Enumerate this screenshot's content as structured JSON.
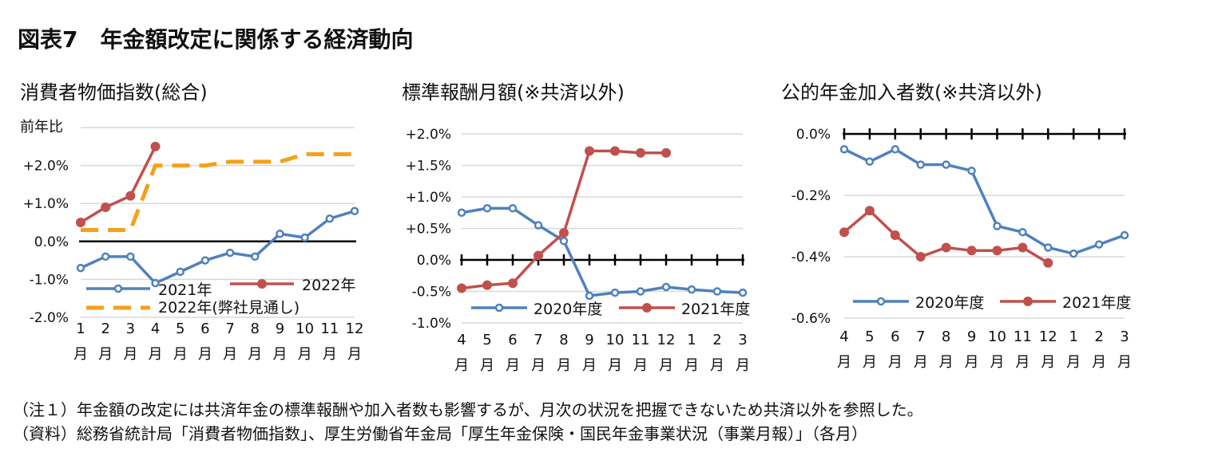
{
  "figure_title": "図表7　年金額改定に関係する経済動向",
  "notes": [
    "（注１）年金額の改定には共済年金の標準報酬や加入者数も影響するが、月次の状況を把握できないため共済以外を参照した。",
    "（資料）総務省統計局「消費者物価指数」、厚生労働省年金局「厚生年金保険・国民年金事業状況（事業月報）」（各月）"
  ],
  "chart_data": [
    {
      "type": "line",
      "title": "消費者物価指数(総合)",
      "ylabel": "前年比",
      "categories": [
        "1月",
        "2月",
        "3月",
        "4月",
        "5月",
        "6月",
        "7月",
        "8月",
        "9月",
        "10月",
        "11月",
        "12月"
      ],
      "ylim": [
        -2.0,
        3.0
      ],
      "yticks": [
        2.0,
        1.0,
        0.0,
        -1.0,
        -2.0
      ],
      "ytick_labels": [
        "+2.0%",
        "+1.0%",
        "0.0%",
        "-1.0%",
        "-2.0%"
      ],
      "grid": true,
      "series": [
        {
          "name": "2021年",
          "color": "#4F81BD",
          "style": "solid",
          "marker": "circle-open",
          "values": [
            -0.7,
            -0.4,
            -0.4,
            -1.1,
            -0.8,
            -0.5,
            -0.3,
            -0.4,
            0.2,
            0.1,
            0.6,
            0.8
          ]
        },
        {
          "name": "2022年",
          "color": "#C0504D",
          "style": "solid",
          "marker": "circle",
          "values": [
            0.5,
            0.9,
            1.2,
            2.5,
            null,
            null,
            null,
            null,
            null,
            null,
            null,
            null
          ]
        },
        {
          "name": "2022年(弊社見通し)",
          "color": "#F5A01A",
          "style": "dashed",
          "marker": "none",
          "values": [
            0.3,
            0.3,
            0.3,
            2.0,
            2.0,
            2.0,
            2.1,
            2.1,
            2.1,
            2.3,
            2.3,
            2.3
          ]
        }
      ]
    },
    {
      "type": "line",
      "title": "標準報酬月額(※共済以外)",
      "categories": [
        "4月",
        "5月",
        "6月",
        "7月",
        "8月",
        "9月",
        "10月",
        "11月",
        "12月",
        "1月",
        "2月",
        "3月"
      ],
      "ylim": [
        -1.0,
        2.0
      ],
      "yticks": [
        2.0,
        1.5,
        1.0,
        0.5,
        0.0,
        -0.5,
        -1.0
      ],
      "ytick_labels": [
        "+2.0%",
        "+1.5%",
        "+1.0%",
        "+0.5%",
        "0.0%",
        "-0.5%",
        "-1.0%"
      ],
      "grid": true,
      "series": [
        {
          "name": "2020年度",
          "color": "#4F81BD",
          "style": "solid",
          "marker": "circle-open",
          "values": [
            0.75,
            0.82,
            0.82,
            0.55,
            0.3,
            -0.57,
            -0.52,
            -0.5,
            -0.43,
            -0.47,
            -0.5,
            -0.52
          ]
        },
        {
          "name": "2021年度",
          "color": "#C0504D",
          "style": "solid",
          "marker": "circle",
          "values": [
            -0.45,
            -0.4,
            -0.37,
            0.07,
            0.43,
            1.73,
            1.73,
            1.7,
            1.7,
            null,
            null,
            null
          ]
        }
      ]
    },
    {
      "type": "line",
      "title": "公的年金加入者数(※共済以外)",
      "categories": [
        "4月",
        "5月",
        "6月",
        "7月",
        "8月",
        "9月",
        "10月",
        "11月",
        "12月",
        "1月",
        "2月",
        "3月"
      ],
      "ylim": [
        -0.6,
        0.0
      ],
      "yticks": [
        0.0,
        -0.2,
        -0.4,
        -0.6
      ],
      "ytick_labels": [
        "0.0%",
        "-0.2%",
        "-0.4%",
        "-0.6%"
      ],
      "grid": true,
      "series": [
        {
          "name": "2020年度",
          "color": "#4F81BD",
          "style": "solid",
          "marker": "circle-open",
          "values": [
            -0.05,
            -0.09,
            -0.05,
            -0.1,
            -0.1,
            -0.12,
            -0.3,
            -0.32,
            -0.37,
            -0.39,
            -0.36,
            -0.33
          ]
        },
        {
          "name": "2021年度",
          "color": "#C0504D",
          "style": "solid",
          "marker": "circle",
          "values": [
            -0.32,
            -0.25,
            -0.33,
            -0.4,
            -0.37,
            -0.38,
            -0.38,
            -0.37,
            -0.42,
            null,
            null,
            null
          ]
        }
      ]
    }
  ]
}
